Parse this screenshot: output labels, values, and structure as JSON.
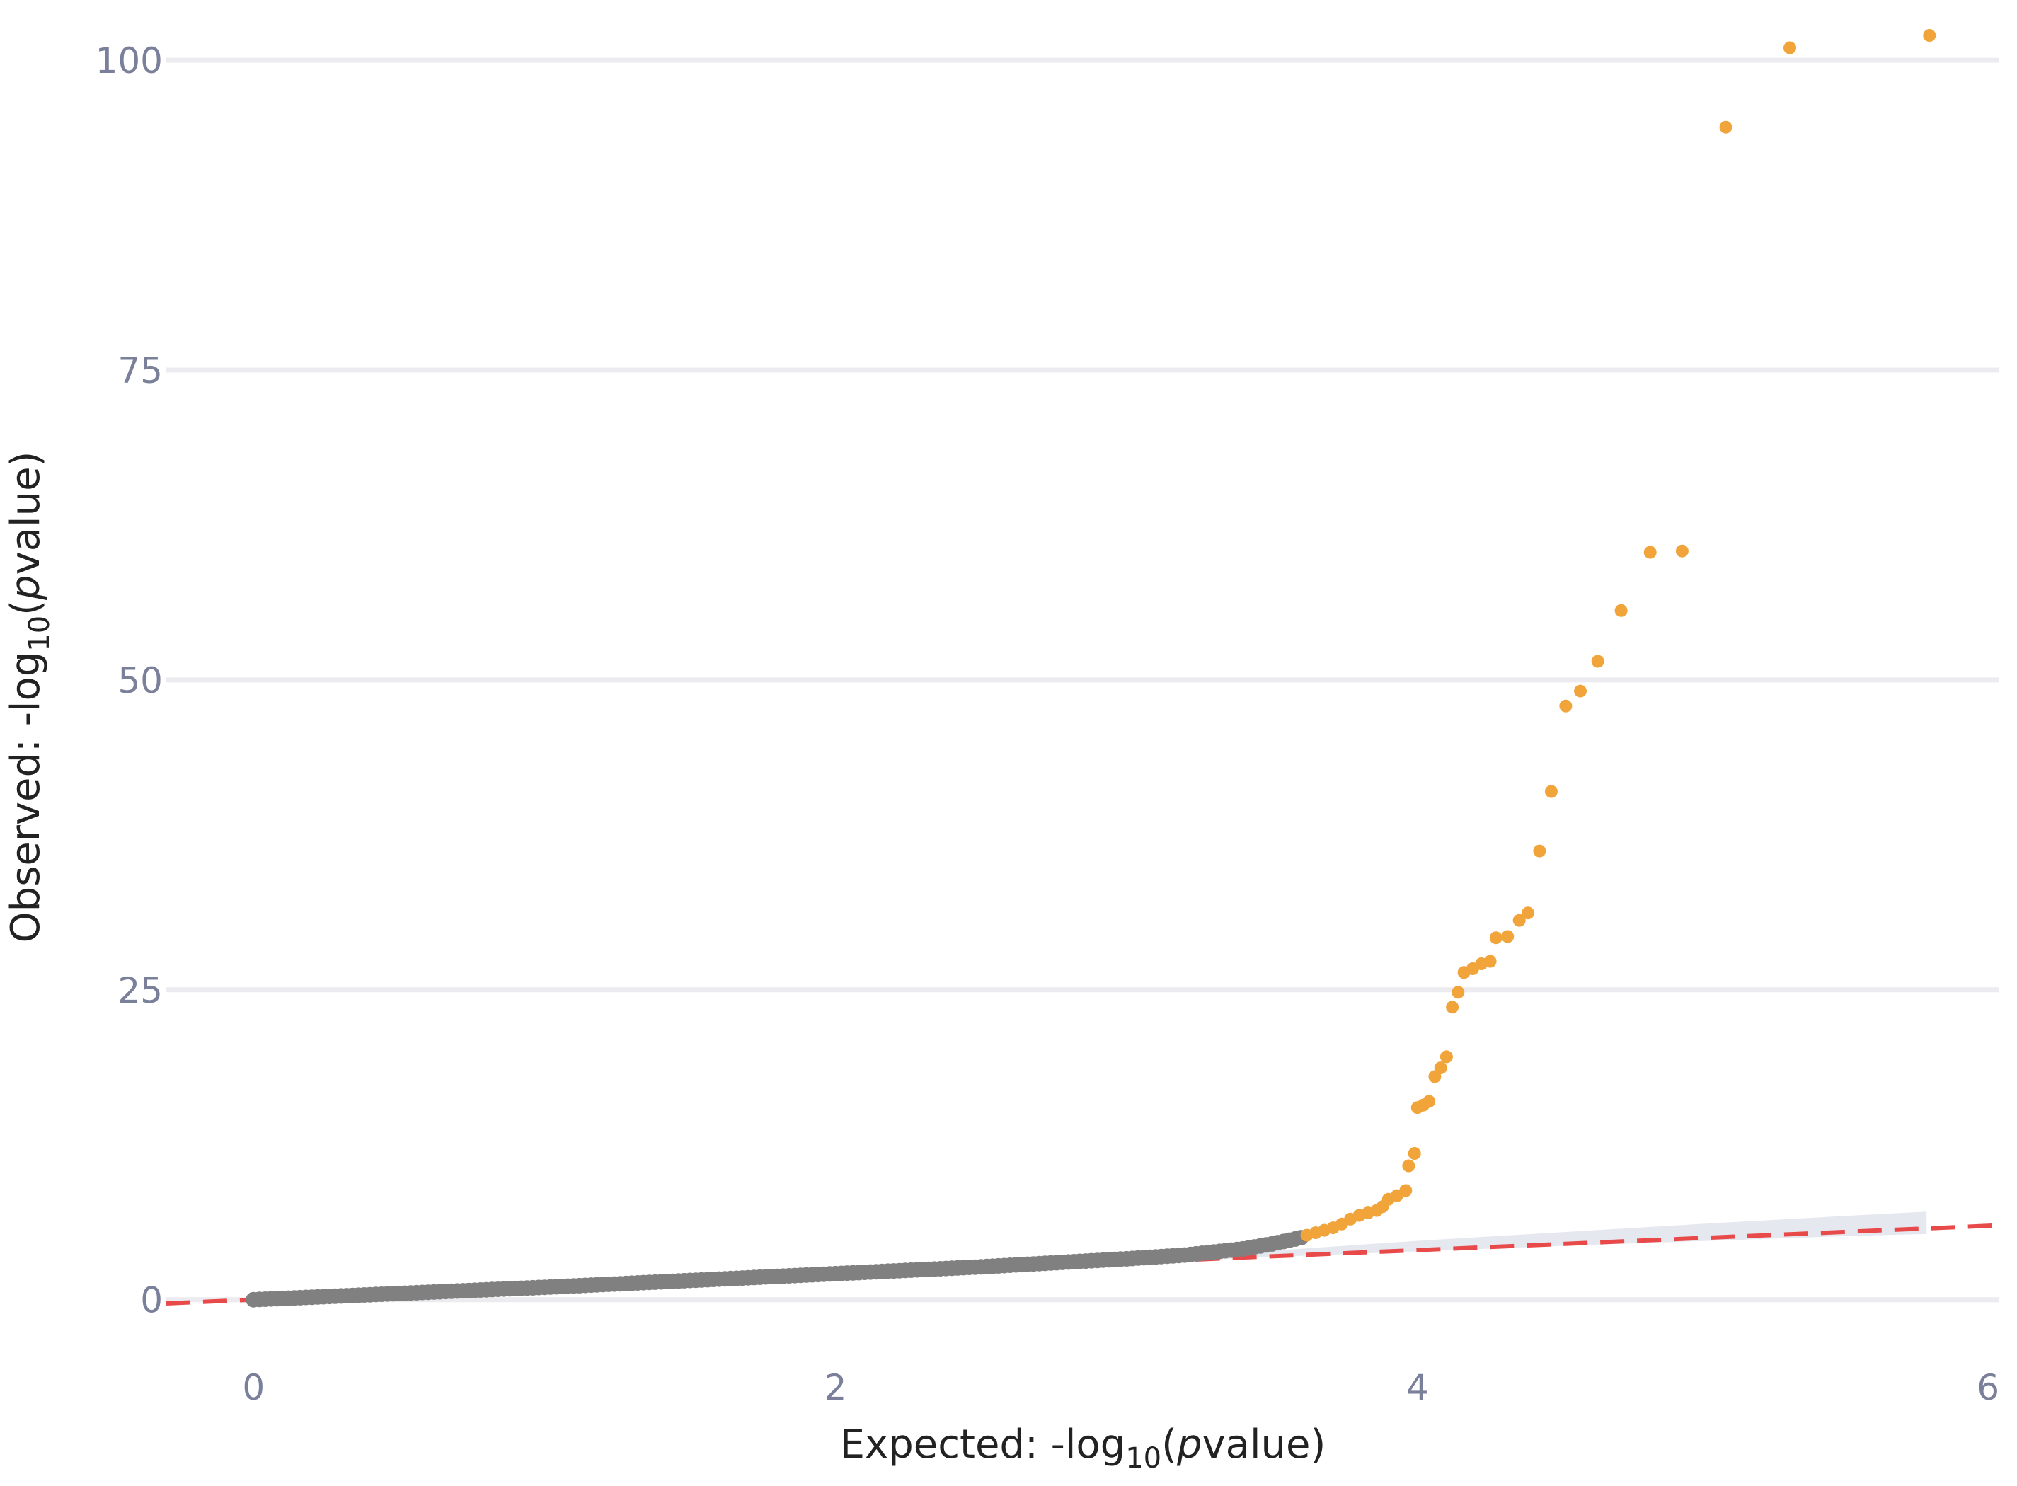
{
  "chart_data": {
    "type": "scatter",
    "xlabel": {
      "prefix": "Expected: -log",
      "sub": "10",
      "open": "(",
      "italic": "p",
      "suffix": "value)"
    },
    "ylabel": {
      "prefix": "Observed: -log",
      "sub": "10",
      "open": "(",
      "italic": "p",
      "suffix": "value)"
    },
    "xlim": [
      -0.3,
      6
    ],
    "ylim": [
      -3.5,
      104
    ],
    "x_ticks": [
      0,
      2,
      4,
      6
    ],
    "y_ticks": [
      0,
      25,
      50,
      75,
      100
    ],
    "x_tick_labels": [
      "0",
      "2",
      "4",
      "6"
    ],
    "y_tick_labels": [
      "0",
      "25",
      "50",
      "75",
      "100"
    ],
    "grid": "horizontal",
    "legend": "none",
    "colors": {
      "null_points": "#808080",
      "significant_points": "#f0a43a",
      "reference_line": "#e84a4a",
      "confidence_band": "#e6e8f0",
      "grid": "#ececf0"
    },
    "reference_line": {
      "x": [
        -0.3,
        6
      ],
      "y": [
        -0.3,
        6
      ]
    },
    "confidence_band": {
      "x": [
        3.1,
        3.5,
        4.0,
        4.5,
        5.0,
        5.5,
        5.75
      ],
      "upper": [
        3.4,
        3.95,
        4.75,
        5.45,
        6.15,
        6.8,
        7.1
      ],
      "lower": [
        3.05,
        3.45,
        3.9,
        4.35,
        4.75,
        5.15,
        5.3
      ]
    },
    "null_curve": {
      "x": [
        0,
        0.5,
        1.0,
        1.5,
        2.0,
        2.5,
        3.0,
        3.2,
        3.4,
        3.5,
        3.6
      ],
      "y": [
        0,
        0.5,
        1.0,
        1.55,
        2.1,
        2.65,
        3.3,
        3.6,
        4.1,
        4.5,
        5.0
      ]
    },
    "significant_points": [
      {
        "x": 3.62,
        "y": 5.2
      },
      {
        "x": 3.65,
        "y": 5.4
      },
      {
        "x": 3.68,
        "y": 5.6
      },
      {
        "x": 3.71,
        "y": 5.8
      },
      {
        "x": 3.74,
        "y": 6.1
      },
      {
        "x": 3.77,
        "y": 6.5
      },
      {
        "x": 3.8,
        "y": 6.8
      },
      {
        "x": 3.83,
        "y": 7.0
      },
      {
        "x": 3.86,
        "y": 7.2
      },
      {
        "x": 3.88,
        "y": 7.5
      },
      {
        "x": 3.9,
        "y": 8.1
      },
      {
        "x": 3.93,
        "y": 8.4
      },
      {
        "x": 3.96,
        "y": 8.8
      },
      {
        "x": 3.97,
        "y": 10.8
      },
      {
        "x": 3.99,
        "y": 11.8
      },
      {
        "x": 4.0,
        "y": 15.5
      },
      {
        "x": 4.02,
        "y": 15.7
      },
      {
        "x": 4.04,
        "y": 16.0
      },
      {
        "x": 4.06,
        "y": 18.0
      },
      {
        "x": 4.08,
        "y": 18.7
      },
      {
        "x": 4.1,
        "y": 19.6
      },
      {
        "x": 4.12,
        "y": 23.6
      },
      {
        "x": 4.14,
        "y": 24.8
      },
      {
        "x": 4.16,
        "y": 26.4
      },
      {
        "x": 4.19,
        "y": 26.7
      },
      {
        "x": 4.22,
        "y": 27.1
      },
      {
        "x": 4.25,
        "y": 27.3
      },
      {
        "x": 4.27,
        "y": 29.2
      },
      {
        "x": 4.31,
        "y": 29.3
      },
      {
        "x": 4.35,
        "y": 30.6
      },
      {
        "x": 4.38,
        "y": 31.2
      },
      {
        "x": 4.42,
        "y": 36.2
      },
      {
        "x": 4.46,
        "y": 41.0
      },
      {
        "x": 4.51,
        "y": 47.9
      },
      {
        "x": 4.56,
        "y": 49.1
      },
      {
        "x": 4.62,
        "y": 51.5
      },
      {
        "x": 4.7,
        "y": 55.6
      },
      {
        "x": 4.8,
        "y": 60.3
      },
      {
        "x": 4.91,
        "y": 60.4
      },
      {
        "x": 5.06,
        "y": 94.6
      },
      {
        "x": 5.28,
        "y": 101.0
      },
      {
        "x": 5.76,
        "y": 102.0
      }
    ]
  }
}
